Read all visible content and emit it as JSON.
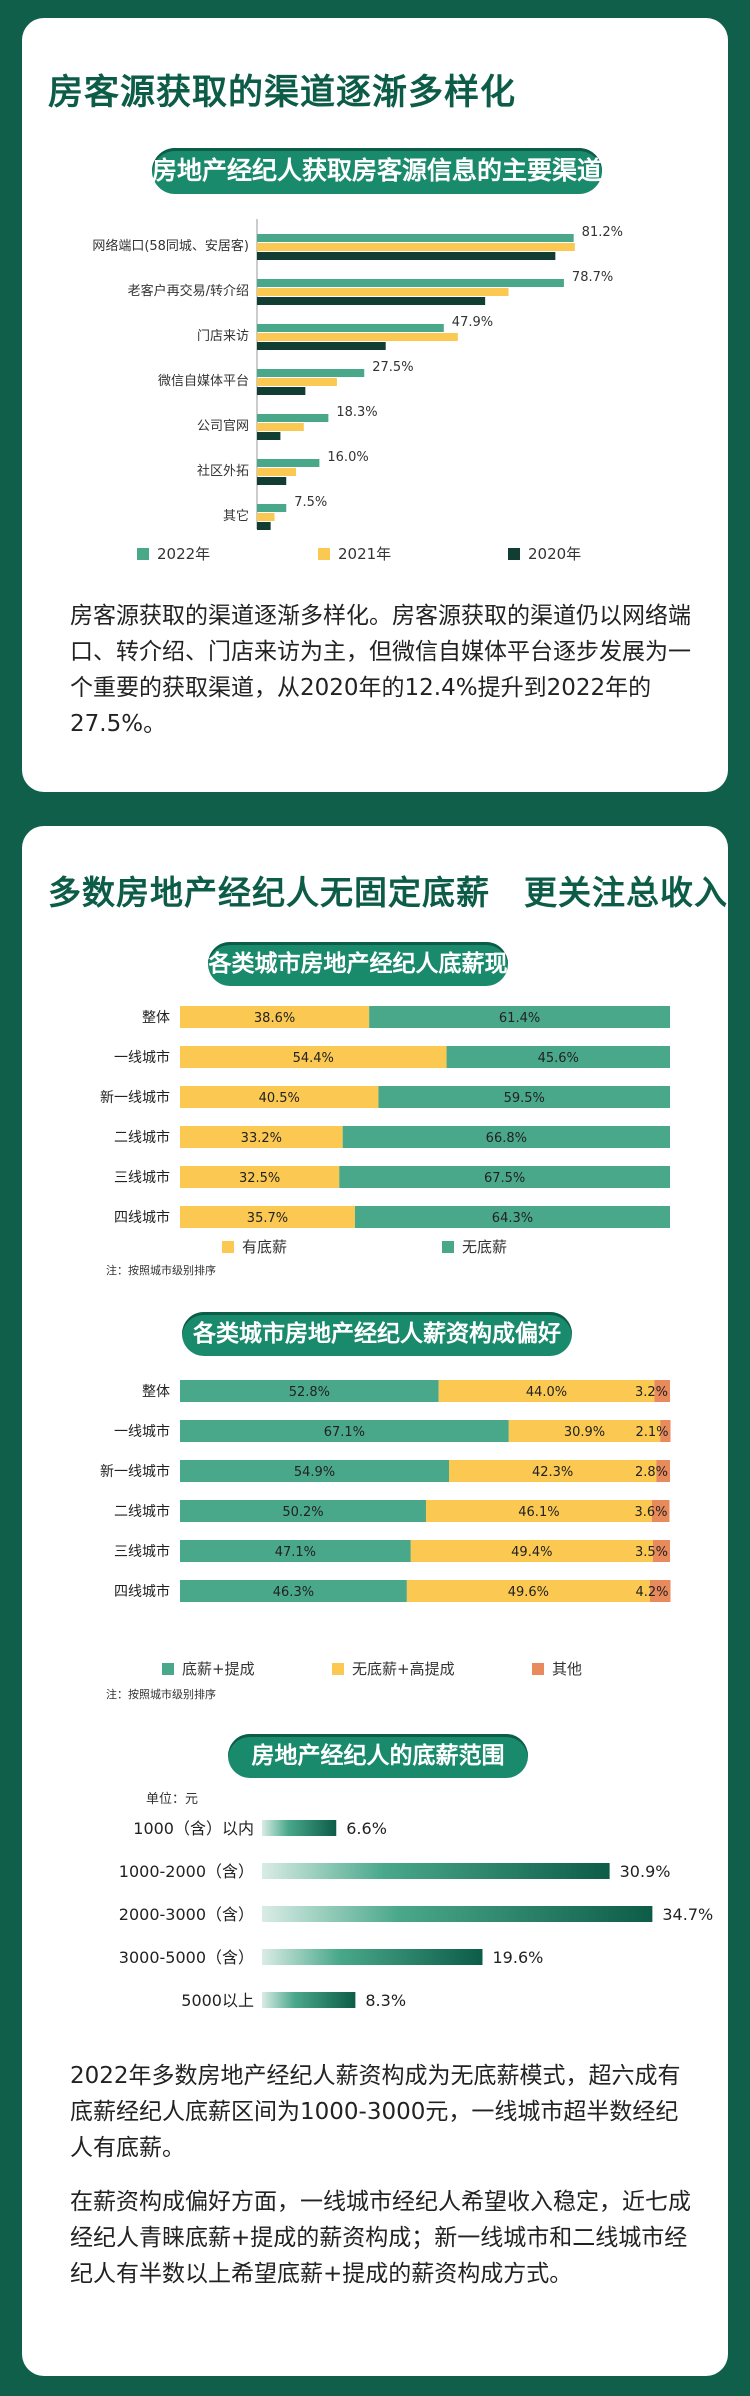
{
  "section1": {
    "title": "房客源获取的渠道逐渐多样化",
    "chart_title": "房地产经纪人获取房客源信息的主要渠道",
    "paragraph": "房客源获取的渠道逐渐多样化。房客源获取的渠道仍以网络端口、转介绍、门店来访为主，但微信自媒体平台逐步发展为一个重要的获取渠道，从2020年的12.4%提升到2022年的27.5%。"
  },
  "section2": {
    "title": "多数房地产经纪人无固定底薪　更关注总收入",
    "chart2_title": "各类城市房地产经纪人底薪现状",
    "chart2_note": "注：按照城市级别排序",
    "chart3_title": "各类城市房地产经纪人薪资构成偏好",
    "chart3_note": "注：按照城市级别排序",
    "chart4_title": "房地产经纪人的底薪范围",
    "chart4_unit": "单位：元",
    "paragraph1": "2022年多数房地产经纪人薪资构成为无底薪模式，超六成有底薪经纪人底薪区间为1000-3000元，一线城市超半数经纪人有底薪。",
    "paragraph2": "在薪资构成偏好方面，一线城市经纪人希望收入稳定，近七成经纪人青睐底薪+提成的薪资构成；新一线城市和二线城市经纪人有半数以上希望底薪+提成的薪资构成方式。"
  },
  "colors": {
    "green": "#4aa88a",
    "yellow": "#fbc952",
    "dark": "#123d33",
    "orange": "#e98a5c",
    "title": "#0d5c48"
  },
  "chart_data": [
    {
      "type": "bar",
      "orientation": "horizontal",
      "title": "房地产经纪人获取房客源信息的主要渠道",
      "categories": [
        "网络端口(58同城、安居客)",
        "老客户再交易/转介绍",
        "门店来访",
        "微信自媒体平台",
        "公司官网",
        "社区外拓",
        "其它"
      ],
      "series": [
        {
          "name": "2022年",
          "values": [
            81.2,
            78.7,
            47.9,
            27.5,
            18.3,
            16.0,
            7.5
          ]
        },
        {
          "name": "2021年",
          "values": [
            81.5,
            64.5,
            51.5,
            20.5,
            12.0,
            10.0,
            4.5
          ]
        },
        {
          "name": "2020年",
          "values": [
            76.5,
            58.5,
            33.0,
            12.4,
            6.0,
            7.5,
            3.5
          ]
        }
      ],
      "value_labels": [
        "81.2%",
        "78.7%",
        "47.9%",
        "27.5%",
        "18.3%",
        "16.0%",
        "7.5%"
      ],
      "legend_position": "bottom",
      "xlim": [
        0,
        100
      ]
    },
    {
      "type": "bar",
      "orientation": "horizontal",
      "stacked": true,
      "title": "各类城市房地产经纪人底薪现状",
      "categories": [
        "整体",
        "一线城市",
        "新一线城市",
        "二线城市",
        "三线城市",
        "四线城市"
      ],
      "series": [
        {
          "name": "有底薪",
          "values": [
            38.6,
            54.4,
            40.5,
            33.2,
            32.5,
            35.7
          ]
        },
        {
          "name": "无底薪",
          "values": [
            61.4,
            45.6,
            59.5,
            66.8,
            67.5,
            64.3
          ]
        }
      ],
      "legend_position": "bottom",
      "xlim": [
        0,
        100
      ]
    },
    {
      "type": "bar",
      "orientation": "horizontal",
      "stacked": true,
      "title": "各类城市房地产经纪人薪资构成偏好",
      "categories": [
        "整体",
        "一线城市",
        "新一线城市",
        "二线城市",
        "三线城市",
        "四线城市"
      ],
      "series": [
        {
          "name": "底薪+提成",
          "values": [
            52.8,
            67.1,
            54.9,
            50.2,
            47.1,
            46.3
          ]
        },
        {
          "name": "无底薪+高提成",
          "values": [
            44.0,
            30.9,
            42.3,
            46.1,
            49.4,
            49.6
          ]
        },
        {
          "name": "其他",
          "values": [
            3.2,
            2.1,
            2.8,
            3.6,
            3.5,
            4.2
          ]
        }
      ],
      "legend_position": "bottom",
      "xlim": [
        0,
        100
      ]
    },
    {
      "type": "bar",
      "orientation": "horizontal",
      "title": "房地产经纪人的底薪范围",
      "categories": [
        "1000（含）以内",
        "1000-2000（含）",
        "2000-3000（含）",
        "3000-5000（含）",
        "5000以上"
      ],
      "values": [
        6.6,
        30.9,
        34.7,
        19.6,
        8.3
      ],
      "value_labels": [
        "6.6%",
        "30.9%",
        "34.7%",
        "19.6%",
        "8.3%"
      ],
      "unit": "单位：元",
      "xlim": [
        0,
        40
      ]
    }
  ]
}
